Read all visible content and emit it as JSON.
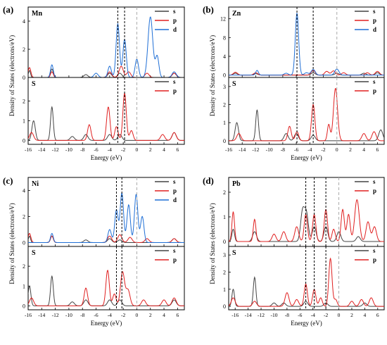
{
  "figure": {
    "ylabel": "Density of States (electrons/eV)",
    "xlabel": "Energy (eV)",
    "xticks": [
      -16,
      -14,
      -12,
      -10,
      -8,
      -6,
      -4,
      -2,
      0,
      2,
      4,
      6
    ],
    "series_colors": {
      "s": "#444444",
      "p": "#e02020",
      "d": "#1f6fd6"
    },
    "frame_color": "#000000",
    "fermi_line_color": "#aaaaaa"
  },
  "chart_data": [
    {
      "panel_label": "(a)",
      "type": "line",
      "xlim": [
        -16,
        7
      ],
      "marker_lines": [
        -2.8,
        -1.8
      ],
      "fermi_level": 0,
      "top": {
        "element": "Mn",
        "ylim": [
          0,
          5
        ],
        "yticks": [
          0,
          2,
          4
        ],
        "legend": [
          "s",
          "p",
          "d"
        ],
        "series": [
          {
            "name": "s",
            "peaks": [
              [
                -15.8,
                0.5,
                0.15
              ],
              [
                -12.5,
                0.6,
                0.2
              ],
              [
                -7.5,
                0.2,
                0.3
              ],
              [
                -4,
                0.3,
                0.3
              ],
              [
                -2.5,
                0.3,
                0.3
              ],
              [
                5.5,
                0.3,
                0.3
              ]
            ]
          },
          {
            "name": "p",
            "peaks": [
              [
                -15.8,
                0.7,
                0.2
              ],
              [
                -12.5,
                0.4,
                0.2
              ],
              [
                -4,
                0.4,
                0.3
              ],
              [
                -2.3,
                0.8,
                0.3
              ],
              [
                -1.2,
                0.4,
                0.3
              ],
              [
                1.5,
                0.3,
                0.3
              ],
              [
                5.5,
                0.3,
                0.3
              ]
            ]
          },
          {
            "name": "d",
            "peaks": [
              [
                -12.5,
                0.9,
                0.2
              ],
              [
                -6,
                0.3,
                0.3
              ],
              [
                -4,
                0.8,
                0.25
              ],
              [
                -2.8,
                3.8,
                0.25
              ],
              [
                -1.8,
                2.7,
                0.25
              ],
              [
                0,
                1.3,
                0.25
              ],
              [
                2,
                4.3,
                0.35
              ],
              [
                3,
                1.5,
                0.25
              ],
              [
                5.5,
                0.4,
                0.3
              ]
            ]
          }
        ]
      },
      "bottom": {
        "element": "S",
        "ylim": [
          -0.2,
          3.2
        ],
        "yticks": [
          0,
          1,
          2
        ],
        "legend": [
          "s",
          "p"
        ],
        "series": [
          {
            "name": "s",
            "peaks": [
              [
                -15.2,
                1.0,
                0.25
              ],
              [
                -12.5,
                1.7,
                0.2
              ],
              [
                -9.5,
                0.2,
                0.3
              ],
              [
                -7.5,
                0.3,
                0.3
              ],
              [
                -4,
                0.3,
                0.3
              ],
              [
                -2.5,
                0.3,
                0.3
              ],
              [
                5.5,
                0.4,
                0.3
              ]
            ]
          },
          {
            "name": "p",
            "peaks": [
              [
                -15.5,
                0.4,
                0.3
              ],
              [
                -7,
                0.8,
                0.25
              ],
              [
                -4.2,
                1.7,
                0.25
              ],
              [
                -3,
                0.7,
                0.25
              ],
              [
                -1.8,
                2.4,
                0.25
              ],
              [
                -0.8,
                0.5,
                0.25
              ],
              [
                3.8,
                0.3,
                0.3
              ],
              [
                5.5,
                0.4,
                0.3
              ]
            ]
          }
        ]
      }
    },
    {
      "panel_label": "(b)",
      "type": "line",
      "xlim": [
        -16,
        7
      ],
      "marker_lines": [
        -5.9,
        -3.5
      ],
      "fermi_level": 0,
      "top": {
        "element": "Zn",
        "ylim": [
          -0.5,
          14.5
        ],
        "yticks": [
          0,
          4,
          8,
          12
        ],
        "legend": [
          "s",
          "p",
          "d"
        ],
        "series": [
          {
            "name": "s",
            "peaks": [
              [
                -15,
                0.4,
                0.3
              ],
              [
                -12,
                0.3,
                0.3
              ],
              [
                -3.5,
                0.5,
                0.3
              ],
              [
                0,
                0.4,
                0.3
              ],
              [
                4,
                0.4,
                0.3
              ],
              [
                6,
                0.5,
                0.3
              ]
            ]
          },
          {
            "name": "p",
            "peaks": [
              [
                -15,
                0.6,
                0.3
              ],
              [
                -12,
                0.5,
                0.3
              ],
              [
                -3.5,
                1.0,
                0.3
              ],
              [
                -1.5,
                0.8,
                0.3
              ],
              [
                -0.5,
                0.9,
                0.3
              ],
              [
                1,
                0.5,
                0.3
              ],
              [
                4.5,
                0.5,
                0.3
              ],
              [
                6,
                0.8,
                0.3
              ]
            ]
          },
          {
            "name": "d",
            "peaks": [
              [
                -11.8,
                1.0,
                0.2
              ],
              [
                -7.5,
                0.4,
                0.3
              ],
              [
                -5.9,
                13.2,
                0.25
              ],
              [
                -4.5,
                0.5,
                0.3
              ],
              [
                -3.5,
                1.2,
                0.3
              ],
              [
                0,
                1.3,
                0.3
              ]
            ]
          }
        ]
      },
      "bottom": {
        "element": "S",
        "ylim": [
          -0.2,
          3.5
        ],
        "yticks": [
          0,
          1,
          2,
          3
        ],
        "legend": [
          "s",
          "p"
        ],
        "series": [
          {
            "name": "s",
            "peaks": [
              [
                -14.8,
                1.0,
                0.25
              ],
              [
                -11.8,
                1.7,
                0.2
              ],
              [
                -7.5,
                0.4,
                0.3
              ],
              [
                -6,
                0.4,
                0.3
              ],
              [
                -3.5,
                0.3,
                0.3
              ],
              [
                6.5,
                0.6,
                0.3
              ]
            ]
          },
          {
            "name": "p",
            "peaks": [
              [
                -14.5,
                0.4,
                0.3
              ],
              [
                -7,
                0.8,
                0.25
              ],
              [
                -5.9,
                0.5,
                0.25
              ],
              [
                -3.5,
                2.0,
                0.25
              ],
              [
                -1.2,
                0.9,
                0.2
              ],
              [
                -0.2,
                2.9,
                0.3
              ],
              [
                4,
                0.4,
                0.3
              ],
              [
                5.5,
                0.5,
                0.3
              ]
            ]
          }
        ]
      }
    },
    {
      "panel_label": "(c)",
      "type": "line",
      "xlim": [
        -16,
        7
      ],
      "marker_lines": [
        -3.0,
        -2.2
      ],
      "fermi_level": 0,
      "top": {
        "element": "Ni",
        "ylim": [
          -0.3,
          5
        ],
        "yticks": [
          0,
          2,
          4
        ],
        "legend": [
          "s",
          "p",
          "d"
        ],
        "series": [
          {
            "name": "s",
            "peaks": [
              [
                -15.8,
                0.5,
                0.15
              ],
              [
                -12.5,
                0.5,
                0.2
              ],
              [
                -7.5,
                0.2,
                0.3
              ],
              [
                -4,
                0.3,
                0.3
              ],
              [
                -2.5,
                0.2,
                0.3
              ],
              [
                5.5,
                0.3,
                0.3
              ]
            ]
          },
          {
            "name": "p",
            "peaks": [
              [
                -15.8,
                0.7,
                0.2
              ],
              [
                -12.5,
                0.5,
                0.2
              ],
              [
                -4,
                0.5,
                0.3
              ],
              [
                -2.5,
                0.6,
                0.3
              ],
              [
                -1,
                0.4,
                0.3
              ],
              [
                1.5,
                0.3,
                0.3
              ],
              [
                5.5,
                0.3,
                0.3
              ]
            ]
          },
          {
            "name": "d",
            "peaks": [
              [
                -12.5,
                0.7,
                0.2
              ],
              [
                -4,
                1.0,
                0.25
              ],
              [
                -3,
                2.5,
                0.25
              ],
              [
                -2.2,
                3.8,
                0.25
              ],
              [
                -1.2,
                2.9,
                0.25
              ],
              [
                -0.1,
                3.7,
                0.25
              ],
              [
                0.8,
                2.0,
                0.25
              ]
            ]
          }
        ]
      },
      "bottom": {
        "element": "S",
        "ylim": [
          -0.2,
          3.0
        ],
        "yticks": [
          0,
          1,
          2
        ],
        "legend": [
          "s",
          "p"
        ],
        "series": [
          {
            "name": "s",
            "peaks": [
              [
                -15.8,
                1.0,
                0.2
              ],
              [
                -12.5,
                1.5,
                0.2
              ],
              [
                -9.5,
                0.2,
                0.3
              ],
              [
                -7.5,
                0.3,
                0.3
              ],
              [
                -4,
                0.3,
                0.3
              ],
              [
                -2.5,
                0.3,
                0.3
              ],
              [
                5.5,
                0.3,
                0.3
              ]
            ]
          },
          {
            "name": "p",
            "peaks": [
              [
                -15.5,
                0.4,
                0.3
              ],
              [
                -7.5,
                0.9,
                0.25
              ],
              [
                -4.3,
                1.8,
                0.25
              ],
              [
                -3.3,
                0.6,
                0.25
              ],
              [
                -2.1,
                1.7,
                0.3
              ],
              [
                -1.3,
                0.8,
                0.3
              ],
              [
                1,
                0.3,
                0.3
              ],
              [
                4,
                0.3,
                0.3
              ],
              [
                5.5,
                0.4,
                0.3
              ]
            ]
          }
        ]
      }
    },
    {
      "panel_label": "(d)",
      "type": "line",
      "xlim": [
        -17,
        7
      ],
      "marker_lines": [
        -5.1,
        -3.8,
        -2.0
      ],
      "fermi_level": 0,
      "top": {
        "element": "Pb",
        "ylim": [
          -0.2,
          2.6
        ],
        "yticks": [
          0,
          1,
          2
        ],
        "legend": [
          "s",
          "p"
        ],
        "series": [
          {
            "name": "s",
            "peaks": [
              [
                -16.3,
                0.5,
                0.2
              ],
              [
                -13,
                0.4,
                0.3
              ],
              [
                -5.6,
                1.2,
                0.3
              ],
              [
                -5,
                1.1,
                0.3
              ],
              [
                -3.8,
                0.6,
                0.3
              ],
              [
                -2,
                0.6,
                0.3
              ],
              [
                0,
                0.4,
                0.3
              ],
              [
                3,
                0.2,
                0.3
              ]
            ]
          },
          {
            "name": "p",
            "peaks": [
              [
                -16.3,
                1.2,
                0.2
              ],
              [
                -13,
                0.9,
                0.2
              ],
              [
                -10,
                0.3,
                0.3
              ],
              [
                -8.5,
                0.4,
                0.3
              ],
              [
                -6.5,
                0.6,
                0.3
              ],
              [
                -5.1,
                1.1,
                0.25
              ],
              [
                -3.8,
                1.1,
                0.25
              ],
              [
                -2,
                1.3,
                0.25
              ],
              [
                -0.8,
                0.5,
                0.25
              ],
              [
                0.6,
                1.3,
                0.25
              ],
              [
                1.5,
                1.1,
                0.25
              ],
              [
                2.8,
                1.7,
                0.35
              ],
              [
                4.5,
                0.8,
                0.3
              ],
              [
                5.5,
                0.6,
                0.3
              ]
            ]
          }
        ]
      },
      "bottom": {
        "element": "S",
        "ylim": [
          -0.2,
          3.5
        ],
        "yticks": [
          0,
          1,
          2,
          3
        ],
        "legend": [
          "s",
          "p"
        ],
        "series": [
          {
            "name": "s",
            "peaks": [
              [
                -16.3,
                1.0,
                0.2
              ],
              [
                -13,
                1.7,
                0.2
              ],
              [
                -10,
                0.2,
                0.3
              ],
              [
                -8.5,
                0.2,
                0.3
              ],
              [
                -5.1,
                0.3,
                0.3
              ],
              [
                -2,
                0.2,
                0.3
              ],
              [
                4,
                0.2,
                0.3
              ]
            ]
          },
          {
            "name": "p",
            "peaks": [
              [
                -16.3,
                0.5,
                0.3
              ],
              [
                -13,
                0.3,
                0.3
              ],
              [
                -8,
                0.8,
                0.3
              ],
              [
                -6.5,
                0.4,
                0.3
              ],
              [
                -5.1,
                1.3,
                0.25
              ],
              [
                -3.8,
                1.0,
                0.25
              ],
              [
                -2.8,
                0.5,
                0.25
              ],
              [
                -1.3,
                2.8,
                0.25
              ],
              [
                -0.5,
                0.4,
                0.25
              ],
              [
                2,
                0.3,
                0.3
              ],
              [
                3.5,
                0.4,
                0.3
              ],
              [
                5,
                0.5,
                0.3
              ]
            ]
          }
        ]
      }
    }
  ]
}
